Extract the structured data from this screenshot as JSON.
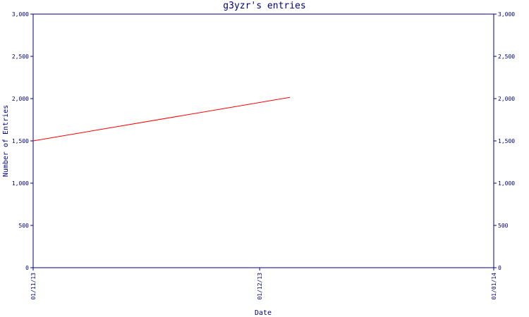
{
  "chart_data": {
    "type": "line",
    "title": "g3yzr's entries",
    "xlabel": "Date",
    "ylabel": "Number of Entries",
    "x_ticks": [
      "01/11/13",
      "01/12/13",
      "01/01/14"
    ],
    "x_range": [
      "01/11/13",
      "01/01/14"
    ],
    "y_ticks": [
      "0",
      "500",
      "1,000",
      "1,500",
      "2,000",
      "2,500",
      "3,000"
    ],
    "ylim": [
      0,
      3000
    ],
    "grid": false,
    "right_axis": true,
    "series": [
      {
        "color": "#ff0000",
        "x": [
          "01/11/13",
          "05/12/13"
        ],
        "values": [
          1500,
          2015
        ]
      }
    ],
    "colors": {
      "axis": "#000080",
      "line": "#ff0000"
    }
  }
}
